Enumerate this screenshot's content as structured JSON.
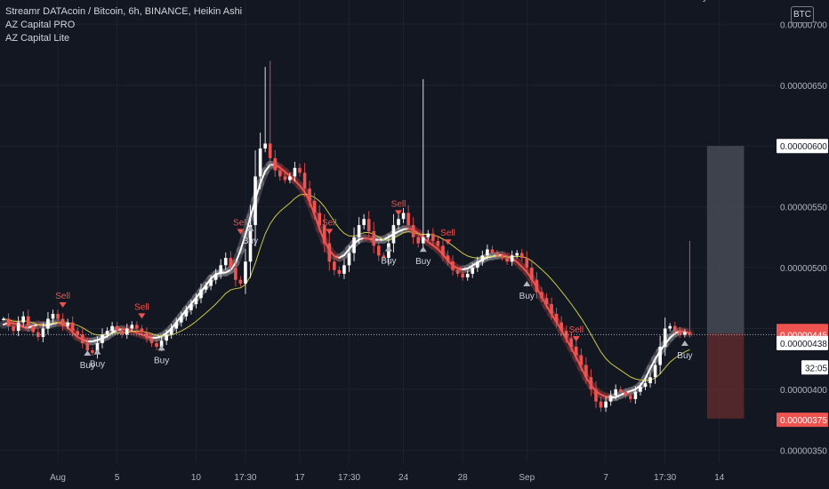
{
  "legend": {
    "symbol_line": "Streamr DATAcoin / Bitcoin, 6h, BINANCE, Heikin Ashi",
    "indicator_1": "AZ Capital PRO",
    "indicator_2": "AZ Capital Lite"
  },
  "currency_badge": "BTC",
  "colors": {
    "background": "#131722",
    "up_candle": "#ffffff",
    "down_candle": "#ef5350",
    "band_up": "#ffffff",
    "band_down": "#ef5350",
    "ma_line": "#c8c843",
    "grid": "#1e222d",
    "signal_buy": "#b2b5be",
    "signal_sell": "#ef5350",
    "box_top": "#4a4d57",
    "box_bottom": "#5e2a2d"
  },
  "chart_data": {
    "type": "candlestick",
    "title": "Streamr DATAcoin / Bitcoin, 6h, BINANCE, Heikin Ashi",
    "yticks": [
      3.5e-06,
      4e-06,
      4.5e-06,
      5e-06,
      5.5e-06,
      6e-06,
      6.5e-06,
      7e-06
    ],
    "ytick_labels": [
      "0.00000350",
      "0.00000400",
      "0.00000450",
      "0.00000500",
      "0.00000550",
      "0.00000600",
      "0.00000650",
      "0.00000700"
    ],
    "ylim": [
      3.4e-06,
      7.2e-06
    ],
    "xticks": [
      {
        "i": 11,
        "label": "Aug"
      },
      {
        "i": 23,
        "label": "5"
      },
      {
        "i": 39,
        "label": "10"
      },
      {
        "i": 49,
        "label": "17:30"
      },
      {
        "i": 60,
        "label": "17"
      },
      {
        "i": 70,
        "label": "17:30"
      },
      {
        "i": 81,
        "label": "24"
      },
      {
        "i": 93,
        "label": "28"
      },
      {
        "i": 106,
        "label": "Sep"
      },
      {
        "i": 122,
        "label": "7"
      },
      {
        "i": 134,
        "label": "17:30"
      },
      {
        "i": 145,
        "label": "14"
      }
    ],
    "price_tags": [
      {
        "label": "0.00000600",
        "value": 6e-06,
        "style": "white"
      },
      {
        "label": "0.00000448",
        "value": 4.48e-06,
        "style": "red"
      },
      {
        "label": "0.00000445",
        "value": 4.45e-06,
        "style": "red"
      },
      {
        "label": "0.00000438",
        "value": 4.38e-06,
        "style": "white"
      },
      {
        "label": "32:05",
        "value": 4.18e-06,
        "style": "white"
      },
      {
        "label": "0.00000375",
        "value": 3.75e-06,
        "style": "red"
      }
    ],
    "current_price": 4.45e-06,
    "position_box": {
      "start_index": 142.5,
      "end_index": 150,
      "top": 6e-06,
      "mid": 4.46e-06,
      "bottom": 3.76e-06
    },
    "closes": [
      4.58,
      4.52,
      4.48,
      4.55,
      4.6,
      4.52,
      4.47,
      4.43,
      4.5,
      4.58,
      4.62,
      4.58,
      4.52,
      4.55,
      4.48,
      4.45,
      4.38,
      4.32,
      4.3,
      4.38,
      4.45,
      4.48,
      4.52,
      4.48,
      4.45,
      4.5,
      4.53,
      4.5,
      4.47,
      4.42,
      4.38,
      4.35,
      4.4,
      4.45,
      4.5,
      4.55,
      4.6,
      4.65,
      4.7,
      4.75,
      4.82,
      4.85,
      4.9,
      4.95,
      5.02,
      5.08,
      5.0,
      4.9,
      4.87,
      5.05,
      5.35,
      5.75,
      5.98,
      6.02,
      5.9,
      5.8,
      5.75,
      5.72,
      5.75,
      5.82,
      5.78,
      5.65,
      5.55,
      5.45,
      5.35,
      5.2,
      5.05,
      4.98,
      4.95,
      5.02,
      5.12,
      5.25,
      5.35,
      5.4,
      5.3,
      5.18,
      5.1,
      5.08,
      5.2,
      5.35,
      5.4,
      5.45,
      5.35,
      5.25,
      5.2,
      5.25,
      5.28,
      5.22,
      5.18,
      5.1,
      5.05,
      4.98,
      4.95,
      4.92,
      4.95,
      5.0,
      5.05,
      5.1,
      5.15,
      5.12,
      5.1,
      5.08,
      5.05,
      5.1,
      5.12,
      5.08,
      5.0,
      4.9,
      4.8,
      4.75,
      4.7,
      4.62,
      4.55,
      4.48,
      4.42,
      4.35,
      4.28,
      4.2,
      4.1,
      4.0,
      3.9,
      3.85,
      3.9,
      3.95,
      4.0,
      3.98,
      3.95,
      3.92,
      3.98,
      4.02,
      4.05,
      4.1,
      4.2,
      4.35,
      4.5,
      4.52,
      4.48,
      4.45,
      4.47,
      4.45
    ],
    "wick_highlights": [
      {
        "index": 53,
        "high": 6.65
      },
      {
        "index": 54,
        "high": 6.7
      },
      {
        "index": 85,
        "high": 6.55
      },
      {
        "index": 139,
        "high": 5.22
      },
      {
        "index": 143,
        "high": 4.85
      }
    ],
    "signals": [
      {
        "index": 17,
        "type": "buy",
        "label": "Buy"
      },
      {
        "index": 12,
        "type": "sell",
        "label": "Sell"
      },
      {
        "index": 19,
        "type": "buy",
        "label": "Buy"
      },
      {
        "index": 28,
        "type": "sell",
        "label": "Sell"
      },
      {
        "index": 32,
        "type": "buy",
        "label": "Buy"
      },
      {
        "index": 48,
        "type": "sell",
        "label": "Sell"
      },
      {
        "index": 50,
        "type": "buy",
        "label": "Buy"
      },
      {
        "index": 66,
        "type": "sell",
        "label": "Sell"
      },
      {
        "index": 78,
        "type": "buy",
        "label": "Buy"
      },
      {
        "index": 80,
        "type": "sell",
        "label": "Sell"
      },
      {
        "index": 85,
        "type": "buy",
        "label": "Buy"
      },
      {
        "index": 90,
        "type": "sell",
        "label": "Sell"
      },
      {
        "index": 106,
        "type": "buy",
        "label": "Buy"
      },
      {
        "index": 116,
        "type": "sell",
        "label": "Sell"
      },
      {
        "index": 138,
        "type": "buy",
        "label": "Buy"
      },
      {
        "index": 140,
        "type": "sell",
        "label": "Sell"
      },
      {
        "index": 141,
        "type": "buy",
        "label": "Buy"
      }
    ]
  }
}
